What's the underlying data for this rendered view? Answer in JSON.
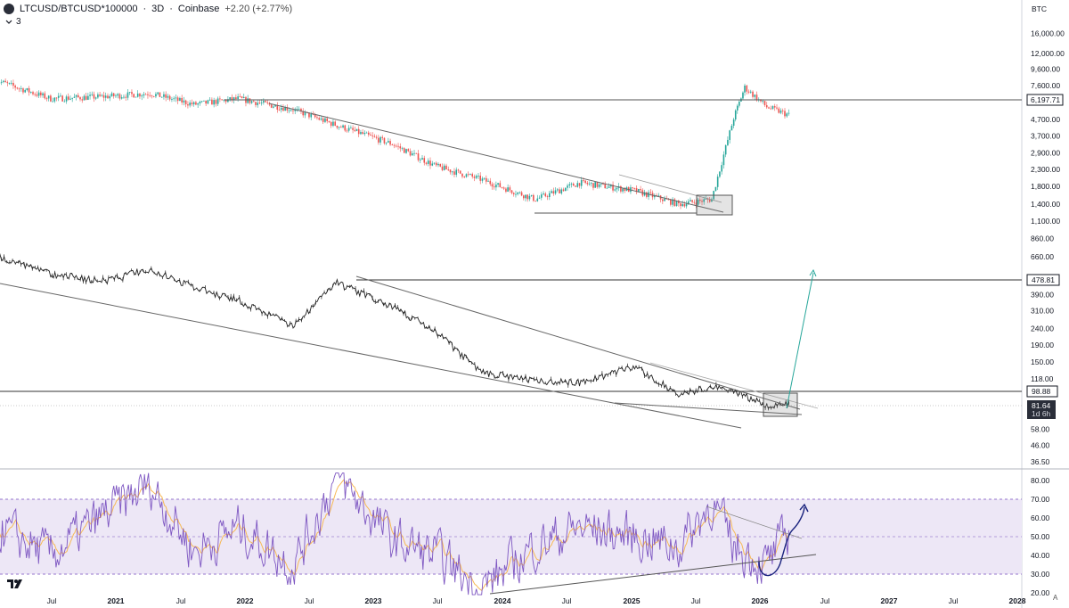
{
  "header": {
    "symbol": "LTCUSD/BTCUSD*100000",
    "separator": "·",
    "interval": "3D",
    "exchange": "Coinbase",
    "change": "+2.20 (+2.77%)",
    "indicator_count": "3"
  },
  "axis": {
    "unit": "BTC",
    "price_ticks_top": [
      "16,000.00",
      "12,000.00",
      "9,600.00",
      "7,600.00",
      "6,000.00",
      "4,700.00",
      "3,700.00",
      "2,900.00",
      "2,300.00",
      "1,800.00",
      "1,400.00",
      "1,100.00",
      "860.00",
      "660.00"
    ],
    "price_ticks_mid": [
      "390.00",
      "310.00",
      "240.00",
      "190.00",
      "150.00",
      "118.00",
      "73.00",
      "58.00",
      "46.00",
      "36.50"
    ],
    "rsi_ticks": [
      "80.00",
      "70.00",
      "60.00",
      "50.00",
      "40.00",
      "30.00",
      "20.00"
    ],
    "x_ticks": [
      {
        "label": "Jul",
        "year": false
      },
      {
        "label": "2021",
        "year": true
      },
      {
        "label": "Jul",
        "year": false
      },
      {
        "label": "2022",
        "year": true
      },
      {
        "label": "Jul",
        "year": false
      },
      {
        "label": "2023",
        "year": true
      },
      {
        "label": "Jul",
        "year": false
      },
      {
        "label": "2024",
        "year": true
      },
      {
        "label": "Jul",
        "year": false
      },
      {
        "label": "2025",
        "year": true
      },
      {
        "label": "Jul",
        "year": false
      },
      {
        "label": "2026",
        "year": true
      },
      {
        "label": "Jul",
        "year": false
      },
      {
        "label": "2027",
        "year": true
      },
      {
        "label": "Jul",
        "year": false
      },
      {
        "label": "2028",
        "year": true
      }
    ]
  },
  "price_tags": {
    "top_level": "6,197.71",
    "mid_level": "478.81",
    "support_level": "98.88",
    "current_price": "81.64",
    "countdown": "1d 6h"
  },
  "colors": {
    "up_candle": "#26a69a",
    "down_candle": "#ef5350",
    "ratio_line": "#222222",
    "rsi_line": "#7e57c2",
    "rsi_ma": "#f7b955",
    "rsi_band": "#ede7f6",
    "arrow": "#26a69a",
    "curve": "#1a237e"
  },
  "chart_data": [
    {
      "type": "line",
      "name": "LTCUSD/BTCUSD*100000 (upper pane)",
      "y_scale": "log",
      "ylim": [
        860,
        18000
      ],
      "x": [
        "2020-03",
        "2020-08",
        "2021-01",
        "2021-05",
        "2021-09",
        "2022-01",
        "2022-06",
        "2022-10",
        "2023-03",
        "2023-07",
        "2023-11",
        "2024-04",
        "2024-08",
        "2025-01",
        "2025-05",
        "2025-08",
        "2025-10",
        "2025-11",
        "2026-01",
        "2026-03"
      ],
      "values": [
        8200,
        6300,
        6500,
        6800,
        5800,
        6300,
        5400,
        4300,
        3300,
        2400,
        2000,
        1500,
        1900,
        1700,
        1400,
        1500,
        4800,
        7400,
        5600,
        5000
      ],
      "horizontal_levels": [
        6197.71
      ]
    },
    {
      "type": "line",
      "name": "LTCUSD/BTCUSD*100000 (middle pane)",
      "y_scale": "log",
      "ylim": [
        36.5,
        600
      ],
      "x": [
        "2020-03",
        "2020-08",
        "2021-01",
        "2021-05",
        "2021-09",
        "2022-01",
        "2022-06",
        "2022-10",
        "2023-03",
        "2023-07",
        "2023-11",
        "2024-04",
        "2024-08",
        "2025-01",
        "2025-05",
        "2025-08",
        "2025-10",
        "2026-01",
        "2026-03"
      ],
      "values": [
        680,
        520,
        470,
        560,
        430,
        360,
        250,
        460,
        330,
        230,
        130,
        115,
        112,
        140,
        95,
        105,
        100,
        80,
        82
      ],
      "horizontal_levels": [
        478.81,
        98.88
      ]
    },
    {
      "type": "line",
      "name": "RSI",
      "ylim": [
        20,
        80
      ],
      "bands": [
        30,
        50,
        70
      ],
      "x": [
        "2020-03",
        "2020-08",
        "2021-01",
        "2021-05",
        "2021-09",
        "2022-01",
        "2022-06",
        "2022-10",
        "2023-03",
        "2023-07",
        "2023-11",
        "2024-04",
        "2024-08",
        "2025-01",
        "2025-05",
        "2025-08",
        "2025-10",
        "2026-01",
        "2026-03"
      ],
      "values": [
        55,
        40,
        62,
        78,
        42,
        55,
        35,
        82,
        48,
        40,
        22,
        45,
        55,
        50,
        45,
        68,
        45,
        35,
        52
      ]
    }
  ]
}
